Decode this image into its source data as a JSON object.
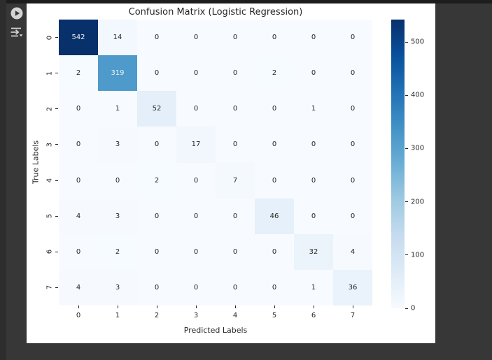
{
  "colors": {
    "page_background": "#373737",
    "top_divider": "#1d1d1d",
    "left_edge": "#2d2d2d",
    "panel_background": "#ffffff",
    "text": "#262626",
    "icon": "#d4d4d4",
    "annotation_light": "#f2f2f2",
    "heatmap_min": "#f7fbff",
    "heatmap_max": "#08306b"
  },
  "cell_toolbar": {
    "icons": [
      {
        "name": "run-cell-play-icon"
      },
      {
        "name": "run-below-icon"
      }
    ]
  },
  "chart_data": {
    "type": "heatmap",
    "title": "Confusion Matrix (Logistic Regression)",
    "xlabel": "Predicted Labels",
    "ylabel": "True Labels",
    "x_tick_labels": [
      "0",
      "1",
      "2",
      "3",
      "4",
      "5",
      "6",
      "7"
    ],
    "y_tick_labels": [
      "0",
      "1",
      "2",
      "3",
      "4",
      "5",
      "6",
      "7"
    ],
    "matrix": [
      [
        542,
        14,
        0,
        0,
        0,
        0,
        0,
        0
      ],
      [
        2,
        319,
        0,
        0,
        0,
        2,
        0,
        0
      ],
      [
        0,
        1,
        52,
        0,
        0,
        0,
        1,
        0
      ],
      [
        0,
        3,
        0,
        17,
        0,
        0,
        0,
        0
      ],
      [
        0,
        0,
        2,
        0,
        7,
        0,
        0,
        0
      ],
      [
        4,
        3,
        0,
        0,
        0,
        46,
        0,
        0
      ],
      [
        0,
        2,
        0,
        0,
        0,
        0,
        32,
        4
      ],
      [
        4,
        3,
        0,
        0,
        0,
        0,
        1,
        36
      ]
    ],
    "annotated": true,
    "colormap": "Blues",
    "vmin": 0,
    "vmax": 542,
    "colorbar_ticks": [
      0,
      100,
      200,
      300,
      400,
      500
    ],
    "colorbar_position": "right",
    "grid": false
  }
}
